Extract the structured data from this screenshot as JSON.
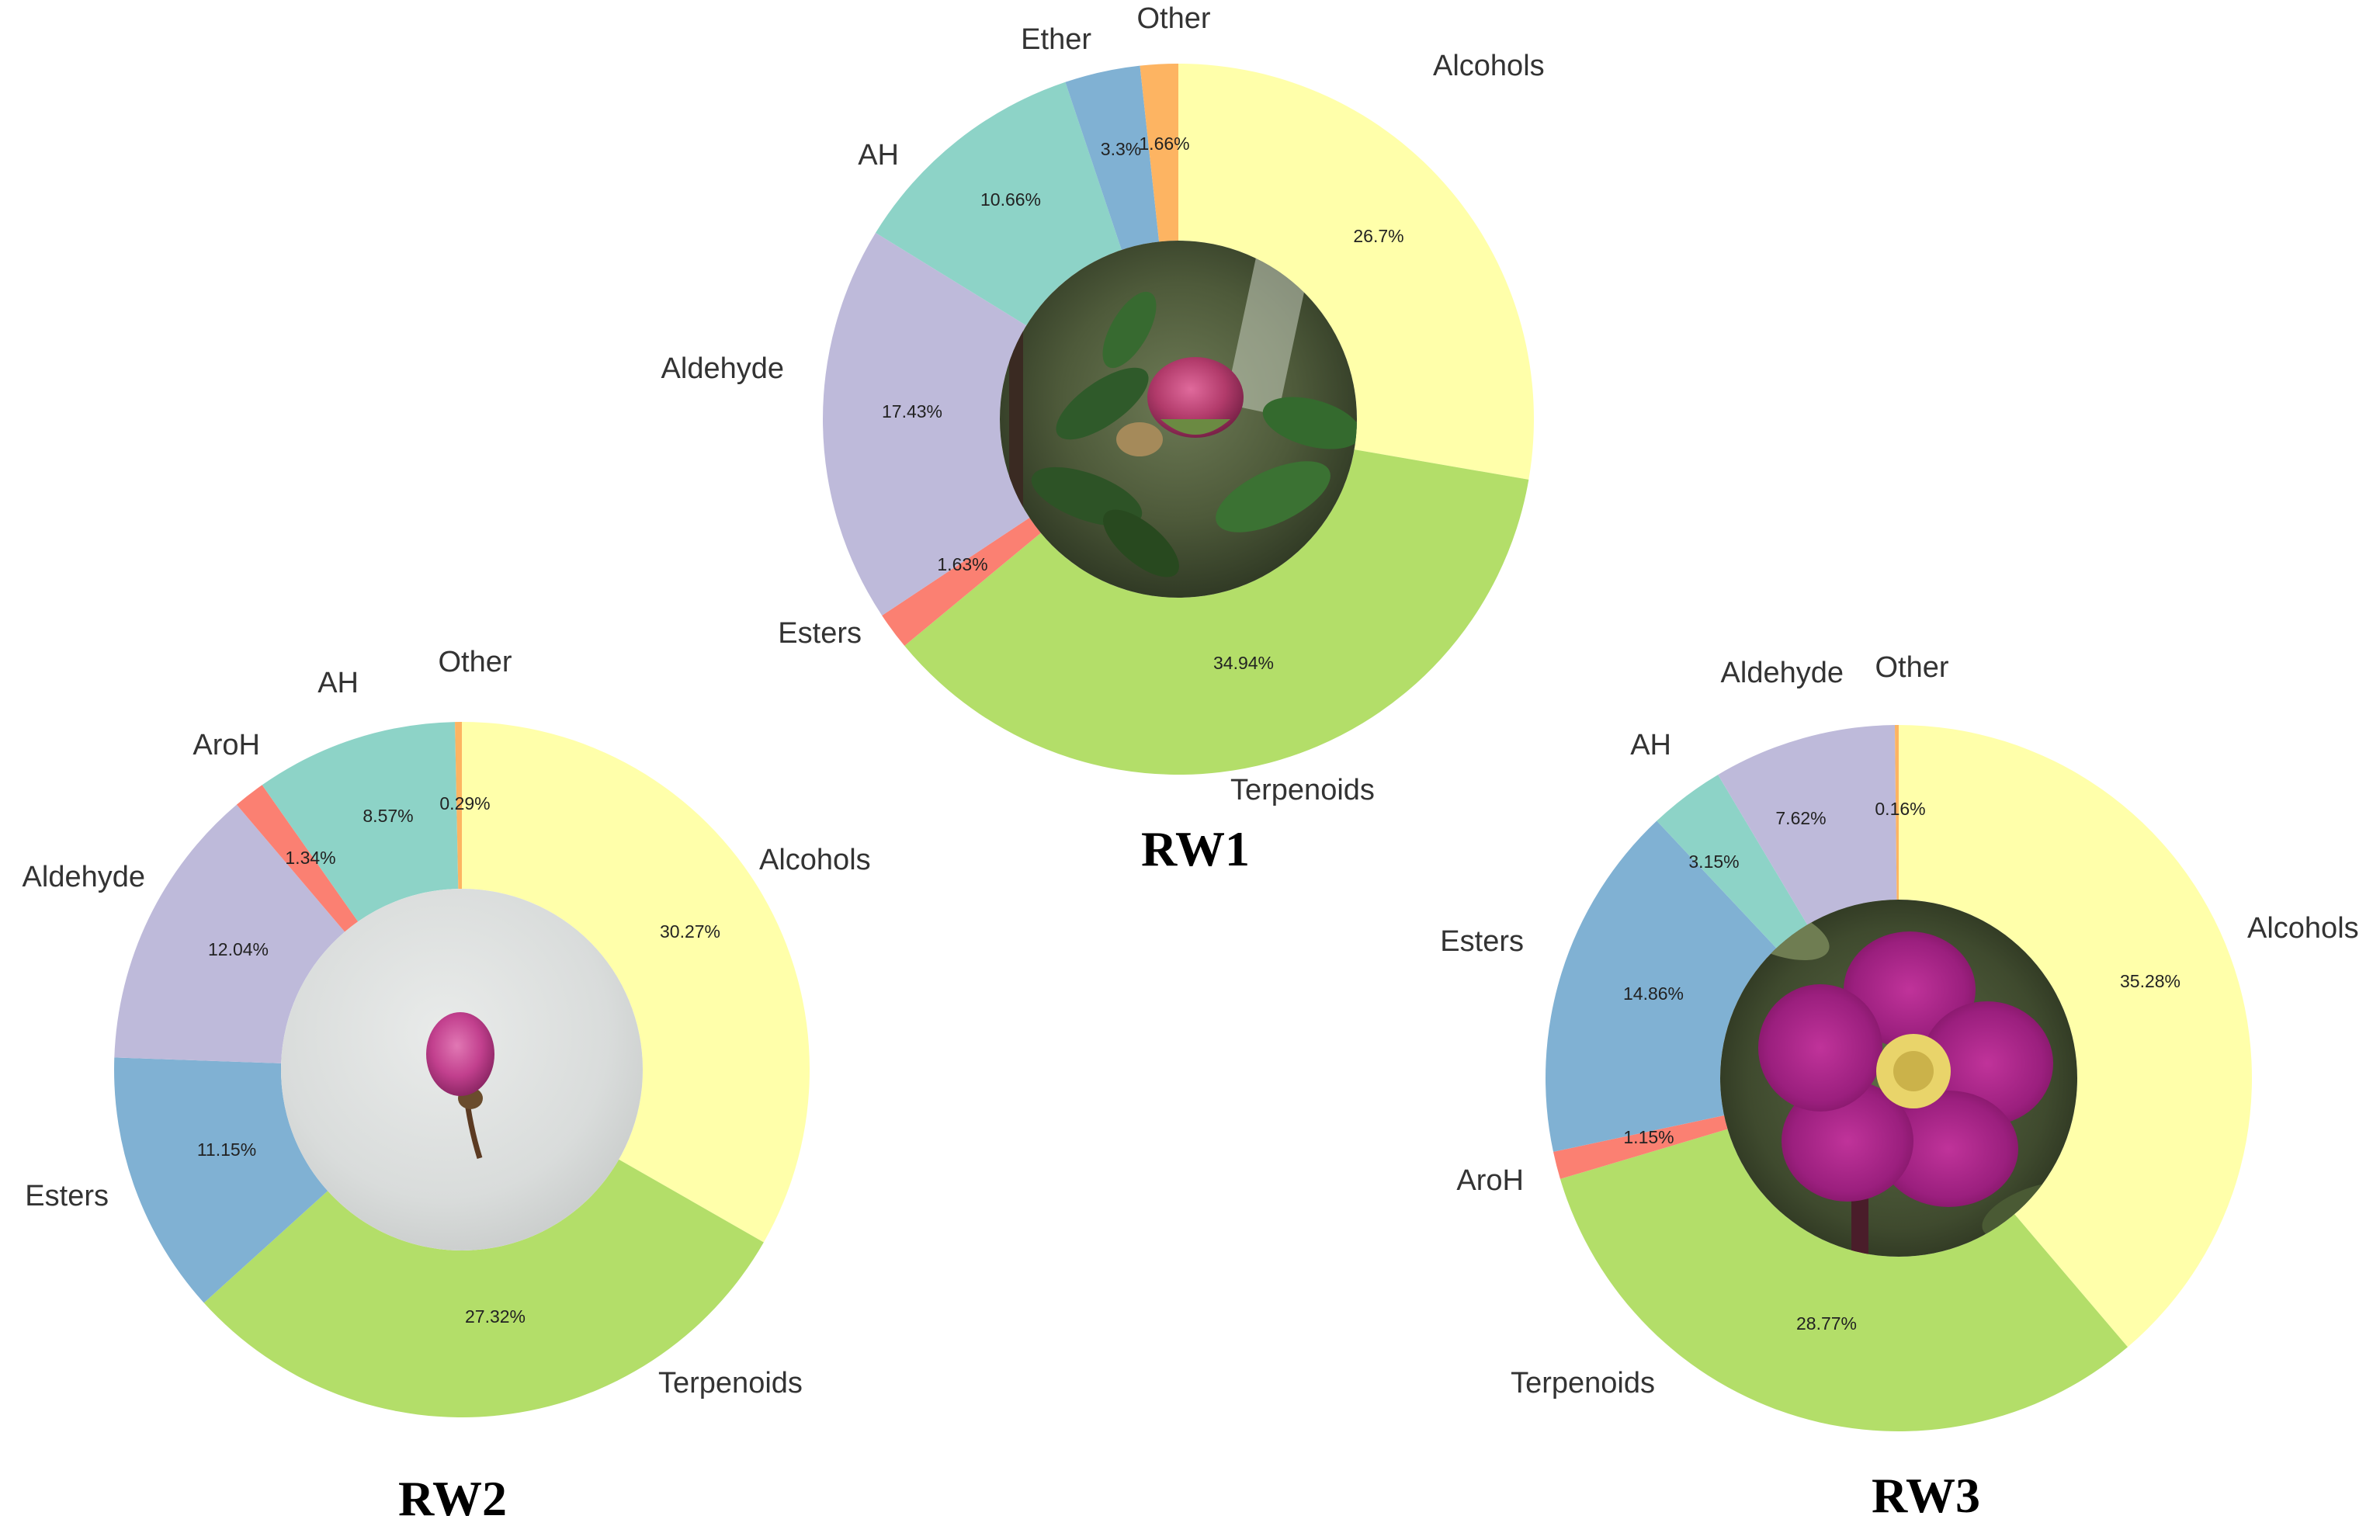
{
  "chart_data": [
    {
      "type": "pie",
      "title": "RW1",
      "series": [
        {
          "label": "Alcohols",
          "value": 26.7,
          "display": "26.7%",
          "color": "#FFFFAA"
        },
        {
          "label": "Terpenoids",
          "value": 34.94,
          "display": "34.94%",
          "color": "#B3DE69"
        },
        {
          "label": "Esters",
          "value": 1.63,
          "display": "1.63%",
          "color": "#FB8072"
        },
        {
          "label": "Aldehyde",
          "value": 17.43,
          "display": "17.43%",
          "color": "#BEBADA"
        },
        {
          "label": "AH",
          "value": 10.66,
          "display": "10.66%",
          "color": "#8DD3C7"
        },
        {
          "label": "Ether",
          "value": 3.3,
          "display": "3.3%",
          "color": "#80B1D3"
        },
        {
          "label": "Other",
          "value": 1.66,
          "display": "1.66%",
          "color": "#FDB462"
        }
      ],
      "center_image": "rose-bud-photo"
    },
    {
      "type": "pie",
      "title": "RW2",
      "series": [
        {
          "label": "Alcohols",
          "value": 30.27,
          "display": "30.27%",
          "color": "#FFFFAA"
        },
        {
          "label": "Terpenoids",
          "value": 27.32,
          "display": "27.32%",
          "color": "#B3DE69"
        },
        {
          "label": "Esters",
          "value": 11.15,
          "display": "11.15%",
          "color": "#80B1D3"
        },
        {
          "label": "Aldehyde",
          "value": 12.04,
          "display": "12.04%",
          "color": "#BEBADA"
        },
        {
          "label": "AroH",
          "value": 1.34,
          "display": "1.34%",
          "color": "#FB8072"
        },
        {
          "label": "AH",
          "value": 8.57,
          "display": "8.57%",
          "color": "#8DD3C7"
        },
        {
          "label": "Other",
          "value": 0.29,
          "display": "0.29%",
          "color": "#FDB462"
        }
      ],
      "center_image": "picked-bud-photo"
    },
    {
      "type": "pie",
      "title": "RW3",
      "series": [
        {
          "label": "Alcohols",
          "value": 35.28,
          "display": "35.28%",
          "color": "#FFFFAA"
        },
        {
          "label": "Terpenoids",
          "value": 28.77,
          "display": "28.77%",
          "color": "#B3DE69"
        },
        {
          "label": "AroH",
          "value": 1.15,
          "display": "1.15%",
          "color": "#FB8072"
        },
        {
          "label": "Esters",
          "value": 14.86,
          "display": "14.86%",
          "color": "#80B1D3"
        },
        {
          "label": "AH",
          "value": 3.15,
          "display": "3.15%",
          "color": "#8DD3C7"
        },
        {
          "label": "Aldehyde",
          "value": 7.62,
          "display": "7.62%",
          "color": "#BEBADA"
        },
        {
          "label": "Other",
          "value": 0.16,
          "display": "0.16%",
          "color": "#FDB462"
        }
      ],
      "center_image": "open-flower-photo"
    }
  ]
}
